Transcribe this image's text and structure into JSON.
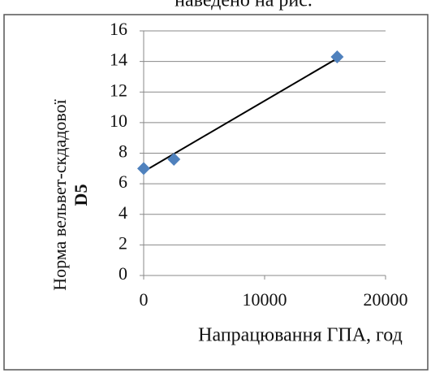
{
  "caption": "наведено на рис.",
  "chart_data": {
    "type": "scatter",
    "y_label": [
      "Норма вельвет-скдадової",
      "D5"
    ],
    "x_label": "Напрацювання ГПА, год",
    "series": [
      {
        "color": "#4f81bd",
        "x": [
          0,
          2500,
          16000
        ],
        "values": [
          7.0,
          7.6,
          14.3
        ]
      }
    ],
    "trendline": {
      "color": "#000000",
      "x": [
        0,
        16000
      ],
      "values": [
        6.8,
        14.2
      ]
    },
    "xlim": [
      0,
      20000
    ],
    "xticks": [
      0,
      10000,
      20000
    ],
    "ylim": [
      0,
      16
    ],
    "yticks": [
      0,
      2,
      4,
      6,
      8,
      10,
      12,
      14,
      16
    ],
    "grid": true
  }
}
